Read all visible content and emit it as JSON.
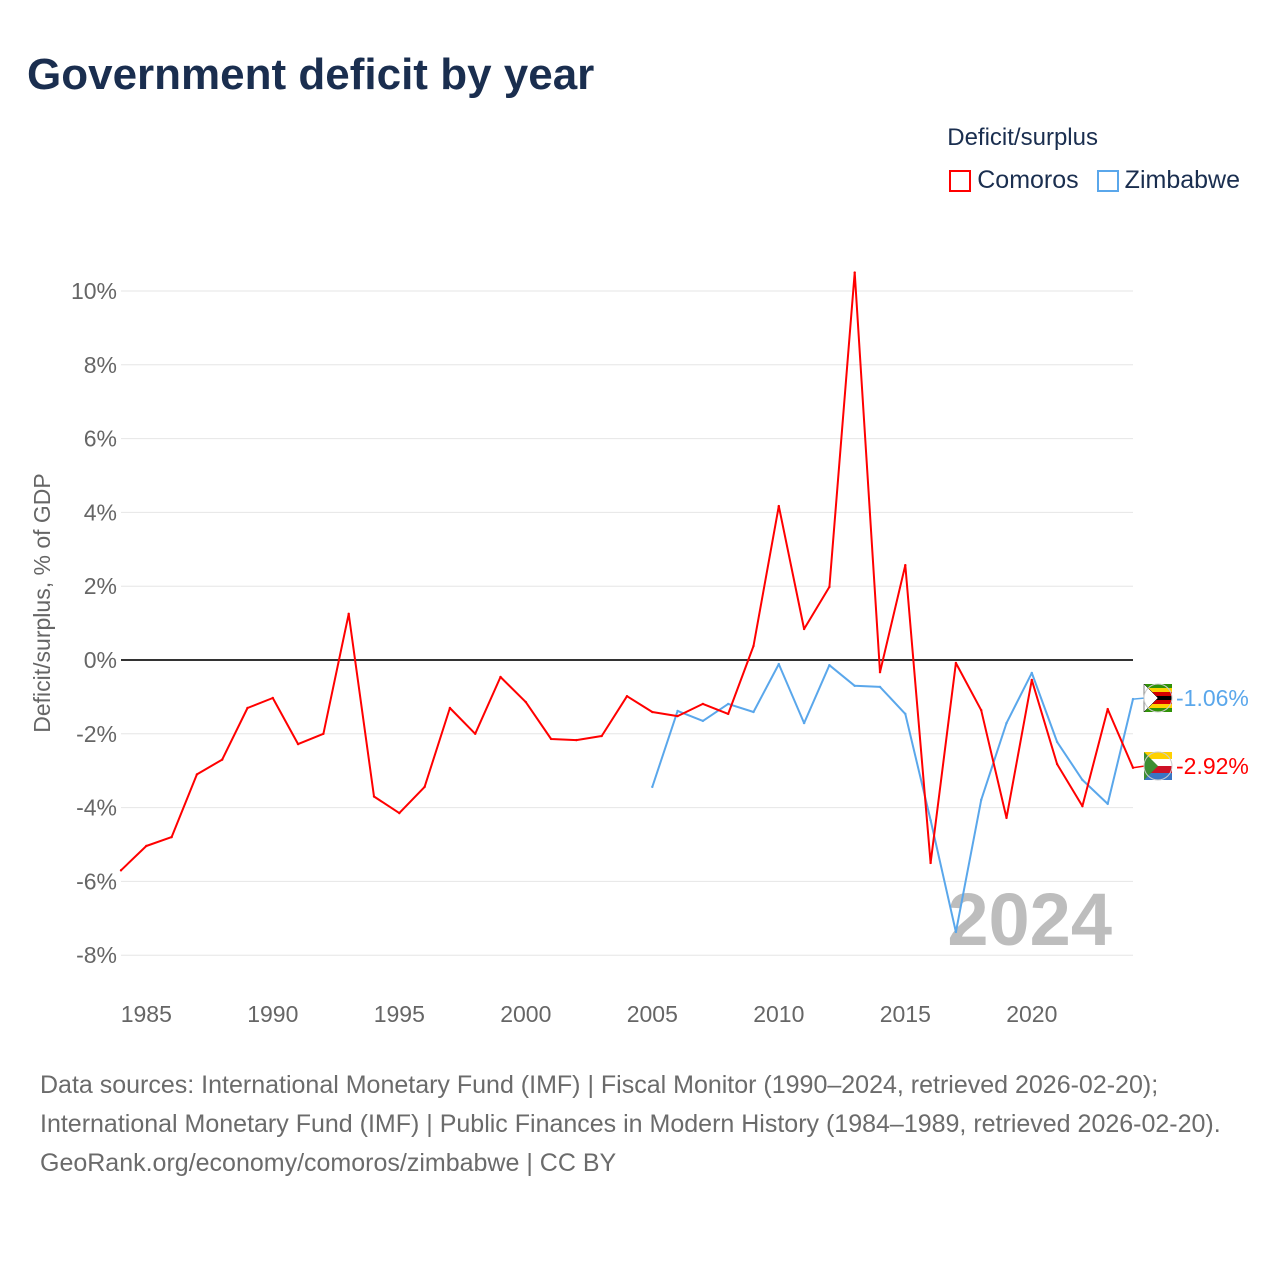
{
  "title": "Government deficit by year",
  "legend": {
    "title": "Deficit/surplus",
    "items": [
      {
        "label": "Comoros",
        "color": "#ff0000"
      },
      {
        "label": "Zimbabwe",
        "color": "#5aa7eb"
      }
    ]
  },
  "chart_data": {
    "type": "line",
    "title": "Government deficit by year",
    "xlabel": "",
    "ylabel": "Deficit/surplus, % of GDP",
    "xlim": [
      1984,
      2024
    ],
    "ylim": [
      -8.5,
      10.5
    ],
    "x_ticks": [
      1985,
      1990,
      1995,
      2000,
      2005,
      2010,
      2015,
      2020
    ],
    "y_ticks": [
      {
        "v": 10,
        "label": "10%"
      },
      {
        "v": 8,
        "label": "8%"
      },
      {
        "v": 6,
        "label": "6%"
      },
      {
        "v": 4,
        "label": "4%"
      },
      {
        "v": 2,
        "label": "2%"
      },
      {
        "v": 0,
        "label": "0%"
      },
      {
        "v": -2,
        "label": "-2%"
      },
      {
        "v": -4,
        "label": "-4%"
      },
      {
        "v": -6,
        "label": "-6%"
      },
      {
        "v": -8,
        "label": "-8%"
      }
    ],
    "grid": true,
    "legend_position": "top-right",
    "year_watermark": "2024",
    "series": [
      {
        "name": "Comoros",
        "color": "#ff0000",
        "end_label": "-2.92%",
        "start": 1984,
        "values": [
          -5.7,
          -5.04,
          -4.8,
          -3.1,
          -2.7,
          -1.3,
          -1.03,
          -2.28,
          -2.0,
          1.25,
          -3.7,
          -4.15,
          -3.44,
          -1.3,
          -2.0,
          -0.46,
          -1.14,
          -2.14,
          -2.17,
          -2.06,
          -0.98,
          -1.41,
          -1.52,
          -1.19,
          -1.46,
          0.38,
          4.17,
          0.84,
          1.98,
          10.5,
          -0.33,
          2.57,
          -5.5,
          -0.08,
          -1.36,
          -4.28,
          -0.54,
          -2.82,
          -3.96,
          -1.33,
          -2.92
        ]
      },
      {
        "name": "Zimbabwe",
        "color": "#5aa7eb",
        "end_label": "-1.06%",
        "start": 2005,
        "values": [
          -3.44,
          -1.38,
          -1.65,
          -1.19,
          -1.41,
          -0.11,
          -1.71,
          -0.14,
          -0.7,
          -0.73,
          -1.46,
          -4.34,
          -7.37,
          -3.79,
          -1.71,
          -0.35,
          -2.22,
          -3.25,
          -3.9,
          -1.06
        ]
      }
    ]
  },
  "footer": {
    "sources": "Data sources: International Monetary Fund (IMF) | Fiscal Monitor (1990–2024, retrieved 2026-02-20); International Monetary Fund (IMF) | Public Finances in Modern History (1984–1989, retrieved 2026-02-20).",
    "credit": "GeoRank.org/economy/comoros/zimbabwe | CC BY"
  }
}
